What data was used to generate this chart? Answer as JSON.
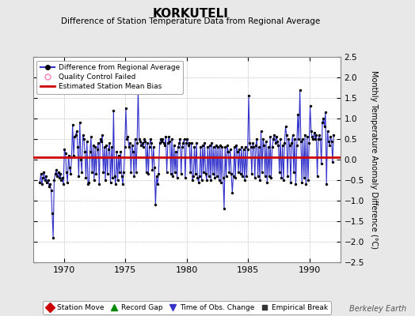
{
  "title": "KORKUTELI",
  "subtitle": "Difference of Station Temperature Data from Regional Average",
  "ylabel": "Monthly Temperature Anomaly Difference (°C)",
  "ylim": [
    -2.5,
    2.5
  ],
  "xlim": [
    1967.5,
    1992.5
  ],
  "mean_bias": 0.05,
  "background_color": "#e8e8e8",
  "plot_bg_color": "#ffffff",
  "line_color": "#3333cc",
  "bias_color": "#cc0000",
  "grid_color": "#c8c8c8",
  "xticks": [
    1970,
    1975,
    1980,
    1985,
    1990
  ],
  "yticks": [
    -2.5,
    -2,
    -1.5,
    -1,
    -0.5,
    0,
    0.5,
    1,
    1.5,
    2,
    2.5
  ],
  "legend1_labels": [
    "Difference from Regional Average",
    "Quality Control Failed",
    "Estimated Station Mean Bias"
  ],
  "legend2_labels": [
    "Station Move",
    "Record Gap",
    "Time of Obs. Change",
    "Empirical Break"
  ],
  "watermark": "Berkeley Earth",
  "data": [
    1968.042,
    -0.55,
    1968.125,
    -0.35,
    1968.208,
    -0.6,
    1968.292,
    -0.45,
    1968.375,
    -0.3,
    1968.458,
    -0.5,
    1968.542,
    -0.4,
    1968.625,
    -0.55,
    1968.708,
    -0.5,
    1968.792,
    -0.65,
    1968.875,
    -0.6,
    1968.958,
    -0.75,
    1969.042,
    -1.3,
    1969.125,
    -1.9,
    1969.208,
    -0.5,
    1969.292,
    -0.35,
    1969.375,
    -0.25,
    1969.458,
    -0.4,
    1969.542,
    -0.3,
    1969.625,
    -0.45,
    1969.708,
    -0.35,
    1969.792,
    -0.5,
    1969.875,
    -0.45,
    1969.958,
    -0.6,
    1970.042,
    0.25,
    1970.125,
    0.15,
    1970.208,
    -0.3,
    1970.292,
    -0.55,
    1970.375,
    0.1,
    1970.458,
    -0.2,
    1970.542,
    -0.35,
    1970.625,
    0.05,
    1970.708,
    0.85,
    1970.792,
    0.1,
    1970.875,
    0.55,
    1970.958,
    0.6,
    1971.042,
    0.7,
    1971.125,
    0.3,
    1971.208,
    -0.4,
    1971.292,
    0.9,
    1971.375,
    0.0,
    1971.458,
    -0.3,
    1971.542,
    0.6,
    1971.625,
    0.5,
    1971.708,
    0.2,
    1971.792,
    -0.45,
    1971.875,
    0.45,
    1971.958,
    -0.6,
    1972.042,
    -0.55,
    1972.125,
    0.2,
    1972.208,
    0.55,
    1972.292,
    -0.3,
    1972.375,
    0.35,
    1972.458,
    -0.5,
    1972.542,
    0.3,
    1972.625,
    -0.35,
    1972.708,
    0.25,
    1972.792,
    0.4,
    1972.875,
    -0.6,
    1972.958,
    0.5,
    1973.042,
    0.45,
    1973.125,
    0.6,
    1973.208,
    -0.3,
    1973.292,
    0.3,
    1973.375,
    -0.5,
    1973.458,
    0.35,
    1973.542,
    -0.35,
    1973.625,
    0.25,
    1973.708,
    0.4,
    1973.792,
    -0.55,
    1973.875,
    0.3,
    1973.958,
    -0.45,
    1974.042,
    1.2,
    1974.125,
    -0.4,
    1974.208,
    -0.6,
    1974.292,
    0.2,
    1974.375,
    -0.5,
    1974.458,
    0.1,
    1974.542,
    -0.3,
    1974.625,
    0.2,
    1974.708,
    -0.4,
    1974.792,
    -0.6,
    1974.875,
    -0.3,
    1974.958,
    0.3,
    1975.042,
    1.25,
    1975.125,
    0.5,
    1975.208,
    0.55,
    1975.292,
    0.3,
    1975.375,
    0.4,
    1975.458,
    -0.3,
    1975.542,
    0.35,
    1975.625,
    0.2,
    1975.708,
    -0.4,
    1975.792,
    0.5,
    1975.875,
    -0.3,
    1975.958,
    0.4,
    1976.042,
    1.7,
    1976.125,
    0.5,
    1976.208,
    0.45,
    1976.292,
    0.35,
    1976.375,
    0.4,
    1976.458,
    0.3,
    1976.542,
    0.5,
    1976.625,
    0.45,
    1976.708,
    -0.3,
    1976.792,
    0.4,
    1976.875,
    -0.35,
    1976.958,
    0.3,
    1977.042,
    0.5,
    1977.125,
    0.4,
    1977.208,
    -0.25,
    1977.292,
    0.3,
    1977.375,
    -0.2,
    1977.458,
    -1.1,
    1977.542,
    -0.4,
    1977.625,
    -0.6,
    1977.708,
    -0.35,
    1977.792,
    0.4,
    1977.875,
    0.5,
    1977.958,
    0.45,
    1978.042,
    0.5,
    1978.125,
    0.4,
    1978.208,
    0.35,
    1978.292,
    0.55,
    1978.375,
    -0.3,
    1978.458,
    0.4,
    1978.542,
    0.55,
    1978.625,
    0.45,
    1978.708,
    -0.35,
    1978.792,
    0.5,
    1978.875,
    -0.4,
    1978.958,
    0.35,
    1979.042,
    -0.3,
    1979.125,
    0.2,
    1979.208,
    -0.45,
    1979.292,
    0.3,
    1979.375,
    0.4,
    1979.458,
    0.5,
    1979.542,
    -0.35,
    1979.625,
    0.3,
    1979.708,
    0.4,
    1979.792,
    0.5,
    1979.875,
    -0.45,
    1979.958,
    0.4,
    1980.042,
    0.5,
    1980.125,
    0.35,
    1980.208,
    0.4,
    1980.292,
    -0.3,
    1980.375,
    0.4,
    1980.458,
    -0.5,
    1980.542,
    -0.4,
    1980.625,
    0.3,
    1980.708,
    -0.35,
    1980.792,
    0.4,
    1980.875,
    -0.45,
    1980.958,
    -0.55,
    1981.042,
    -0.4,
    1981.125,
    0.3,
    1981.208,
    -0.5,
    1981.292,
    0.35,
    1981.375,
    -0.3,
    1981.458,
    0.4,
    1981.542,
    -0.35,
    1981.625,
    -0.5,
    1981.708,
    0.3,
    1981.792,
    -0.4,
    1981.875,
    0.35,
    1981.958,
    -0.5,
    1982.042,
    0.4,
    1982.125,
    -0.35,
    1982.208,
    0.3,
    1982.292,
    -0.45,
    1982.375,
    0.35,
    1982.458,
    -0.4,
    1982.542,
    0.3,
    1982.625,
    -0.5,
    1982.708,
    0.35,
    1982.792,
    -0.55,
    1982.875,
    0.3,
    1982.958,
    -0.45,
    1983.042,
    -1.2,
    1983.125,
    0.3,
    1983.208,
    -0.4,
    1983.292,
    0.35,
    1983.375,
    0.2,
    1983.458,
    -0.3,
    1983.542,
    0.25,
    1983.625,
    -0.35,
    1983.708,
    -0.8,
    1983.792,
    -0.4,
    1983.875,
    0.3,
    1983.958,
    -0.45,
    1984.042,
    0.35,
    1984.125,
    0.2,
    1984.208,
    -0.3,
    1984.292,
    0.25,
    1984.375,
    -0.35,
    1984.458,
    0.3,
    1984.542,
    -0.4,
    1984.625,
    0.25,
    1984.708,
    -0.5,
    1984.792,
    0.3,
    1984.875,
    -0.4,
    1984.958,
    0.25,
    1985.042,
    1.55,
    1985.125,
    0.4,
    1985.208,
    0.3,
    1985.292,
    -0.35,
    1985.375,
    0.4,
    1985.458,
    0.3,
    1985.542,
    -0.45,
    1985.625,
    0.35,
    1985.708,
    0.5,
    1985.792,
    -0.4,
    1985.875,
    0.3,
    1985.958,
    -0.5,
    1986.042,
    0.7,
    1986.125,
    -0.3,
    1986.208,
    0.5,
    1986.292,
    0.35,
    1986.375,
    -0.4,
    1986.458,
    0.45,
    1986.542,
    -0.55,
    1986.625,
    0.3,
    1986.708,
    -0.4,
    1986.792,
    0.55,
    1986.875,
    -0.45,
    1986.958,
    0.3,
    1987.042,
    0.5,
    1987.125,
    0.6,
    1987.208,
    0.4,
    1987.292,
    0.55,
    1987.375,
    0.45,
    1987.458,
    0.35,
    1987.542,
    -0.3,
    1987.625,
    0.5,
    1987.708,
    -0.45,
    1987.792,
    0.35,
    1987.875,
    -0.5,
    1987.958,
    0.4,
    1988.042,
    0.8,
    1988.125,
    0.6,
    1988.208,
    -0.4,
    1988.292,
    0.5,
    1988.375,
    0.35,
    1988.458,
    -0.55,
    1988.542,
    0.4,
    1988.625,
    0.6,
    1988.708,
    -0.3,
    1988.792,
    0.5,
    1988.875,
    -0.6,
    1988.958,
    0.35,
    1989.042,
    1.1,
    1989.125,
    0.5,
    1989.208,
    1.7,
    1989.292,
    0.45,
    1989.375,
    -0.55,
    1989.458,
    0.5,
    1989.542,
    -0.45,
    1989.625,
    0.6,
    1989.708,
    -0.6,
    1989.792,
    0.55,
    1989.875,
    -0.5,
    1989.958,
    0.4,
    1990.042,
    1.3,
    1990.125,
    0.7,
    1990.208,
    0.55,
    1990.292,
    0.5,
    1990.375,
    0.65,
    1990.458,
    0.5,
    1990.542,
    0.6,
    1990.625,
    -0.4,
    1990.708,
    0.5,
    1990.792,
    0.6,
    1990.875,
    0.5,
    1990.958,
    -0.1,
    1991.042,
    0.9,
    1991.125,
    1.0,
    1991.208,
    0.8,
    1991.292,
    1.15,
    1991.375,
    -0.6,
    1991.458,
    0.7,
    1991.542,
    0.45,
    1991.625,
    0.35,
    1991.708,
    0.55,
    1991.792,
    0.45,
    1991.875,
    -0.05,
    1991.958,
    0.6
  ]
}
